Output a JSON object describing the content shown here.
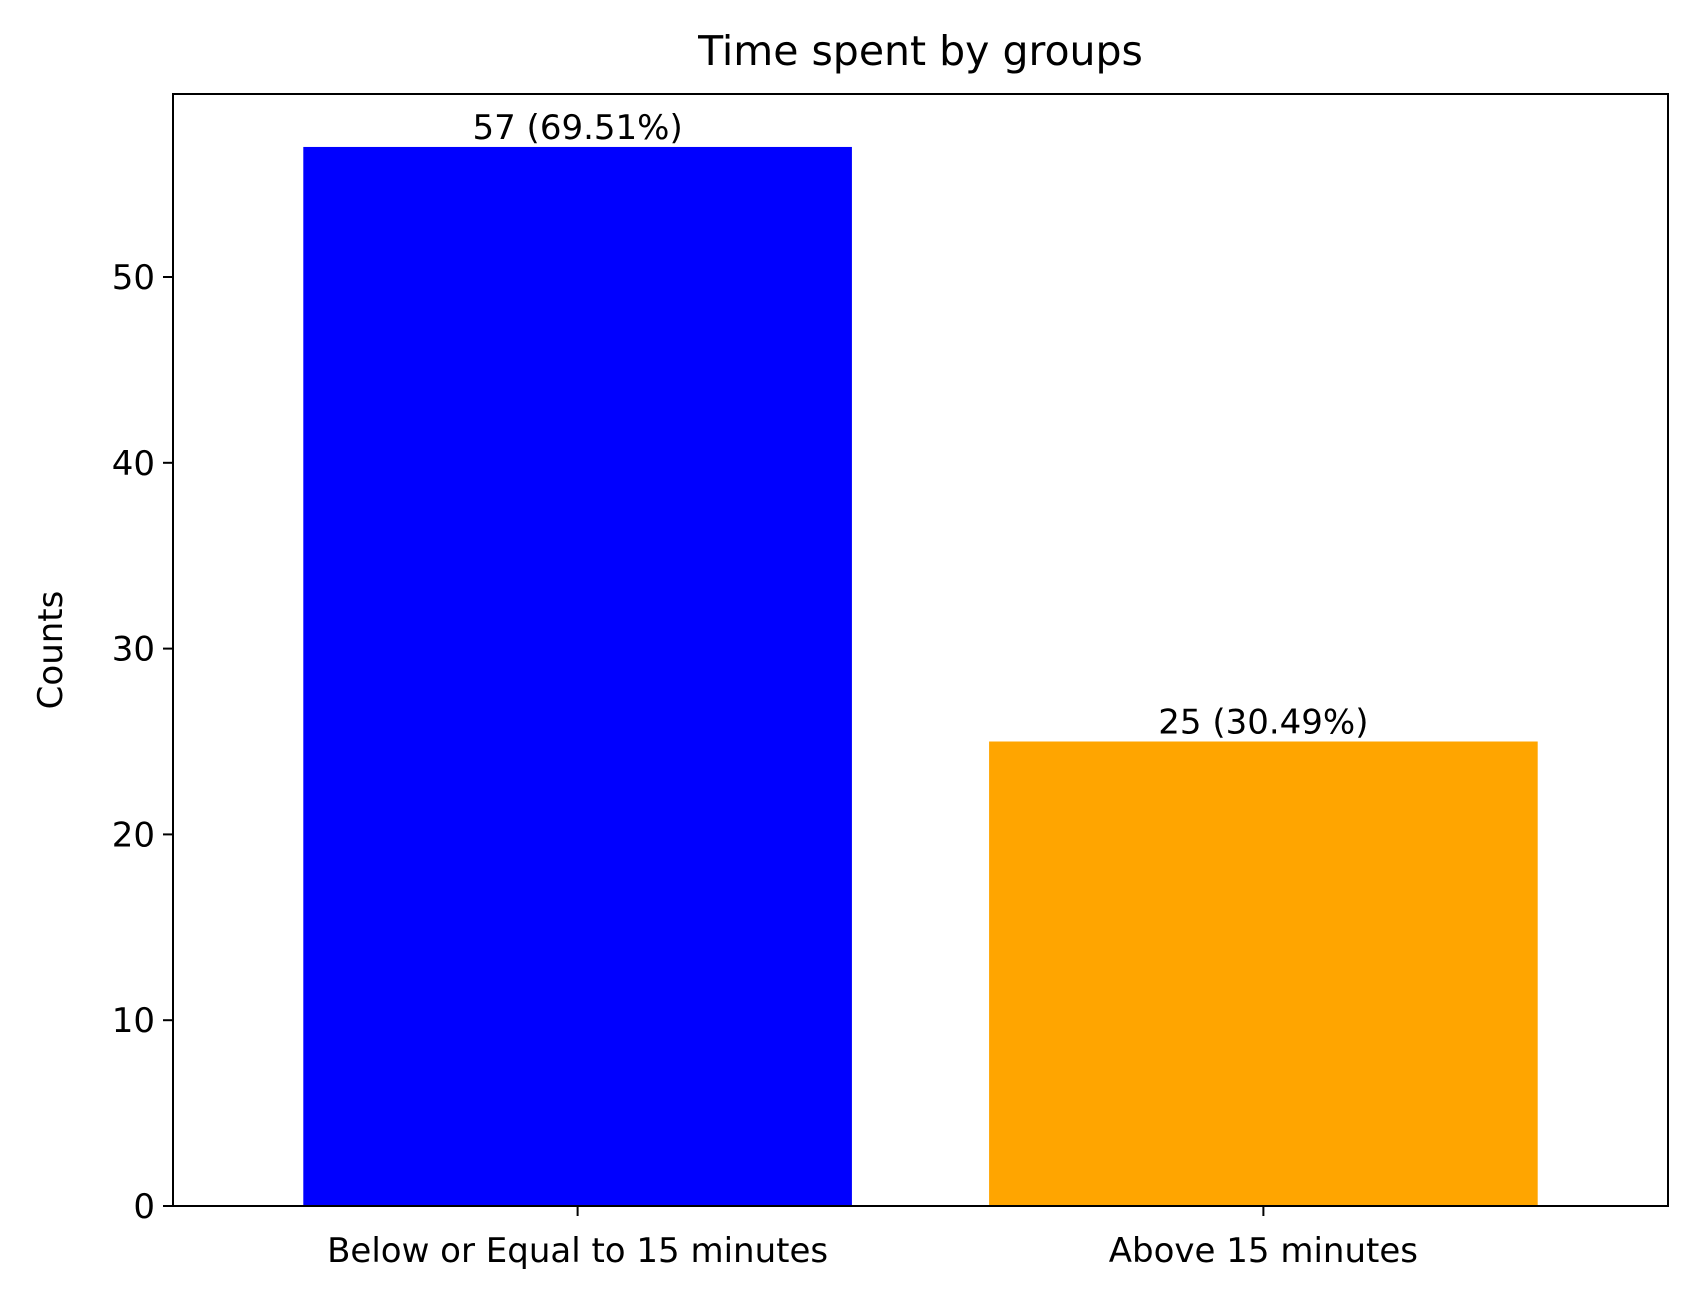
{
  "chart_data": {
    "type": "bar",
    "title": "Time spent by groups",
    "xlabel": "",
    "ylabel": "Counts",
    "categories": [
      "Below or Equal to 15 minutes",
      "Above 15 minutes"
    ],
    "values": [
      57,
      25
    ],
    "data_labels": [
      "57 (69.51%)",
      "25 (30.49%)"
    ],
    "colors": [
      "#0000ff",
      "#ffa500"
    ],
    "ylim": [
      0,
      59.85
    ],
    "yticks": [
      0,
      10,
      20,
      30,
      40,
      50
    ],
    "grid": false,
    "legend": "none"
  }
}
